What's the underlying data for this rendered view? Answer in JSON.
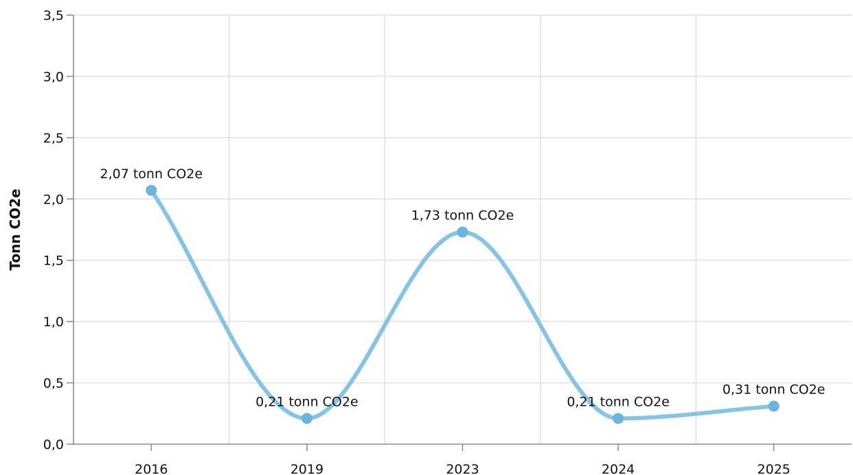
{
  "chart_data": {
    "type": "line",
    "smooth": true,
    "categories": [
      "2016",
      "2019",
      "2023",
      "2024",
      "2025"
    ],
    "series": [
      {
        "values": [
          2.07,
          0.21,
          1.73,
          0.21,
          0.31
        ],
        "labels": [
          "2,07 tonn CO2e",
          "0,21 tonn CO2e",
          "1,73 tonn CO2e",
          "0,21 tonn CO2e",
          "0,31 tonn CO2e"
        ],
        "color": "#87c4e3",
        "marker_color": "#6ab4dd"
      }
    ],
    "ylabel": "Tonn CO2e",
    "ylim": [
      0,
      3.5
    ],
    "yticks": [
      "0,0",
      "0,5",
      "1,0",
      "1,5",
      "2,0",
      "2,5",
      "3,0",
      "3,5"
    ],
    "grid": true
  }
}
